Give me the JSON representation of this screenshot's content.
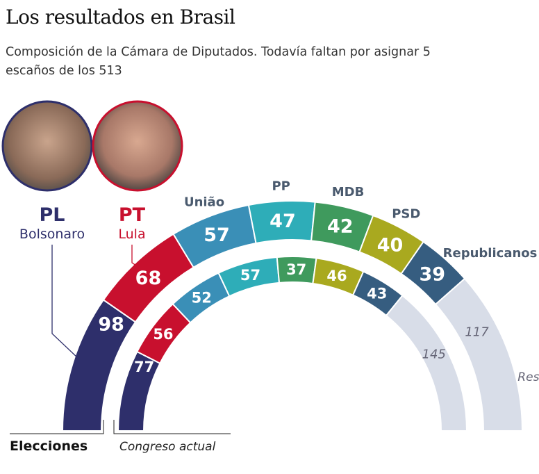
{
  "title": "Los resultados en Brasil",
  "subtitle": "Composición de la Cámara de Diputados. Todavía faltan por asignar 5 escaños de los 513",
  "chart_data": {
    "type": "parliament-semicircle",
    "categories": [
      "PL",
      "PT",
      "União",
      "PP",
      "MDB",
      "PSD",
      "Republicanos",
      "Resto"
    ],
    "colors": [
      "#2e2f6b",
      "#c8102e",
      "#3a8fb7",
      "#2eadb8",
      "#3f9a5d",
      "#a9a91f",
      "#365d80",
      "#d8dde8"
    ],
    "series": [
      {
        "name": "Elecciones",
        "values": [
          98,
          68,
          57,
          47,
          42,
          40,
          39,
          117
        ]
      },
      {
        "name": "Congreso actual",
        "values": [
          77,
          56,
          52,
          57,
          37,
          46,
          43,
          145
        ]
      }
    ],
    "total_seats": 513,
    "resto_label": "Resto"
  },
  "leaders": [
    {
      "party": "PL",
      "name": "Bolsonaro",
      "color": "#2e2f6b"
    },
    {
      "party": "PT",
      "name": "Lula",
      "color": "#c8102e"
    }
  ]
}
